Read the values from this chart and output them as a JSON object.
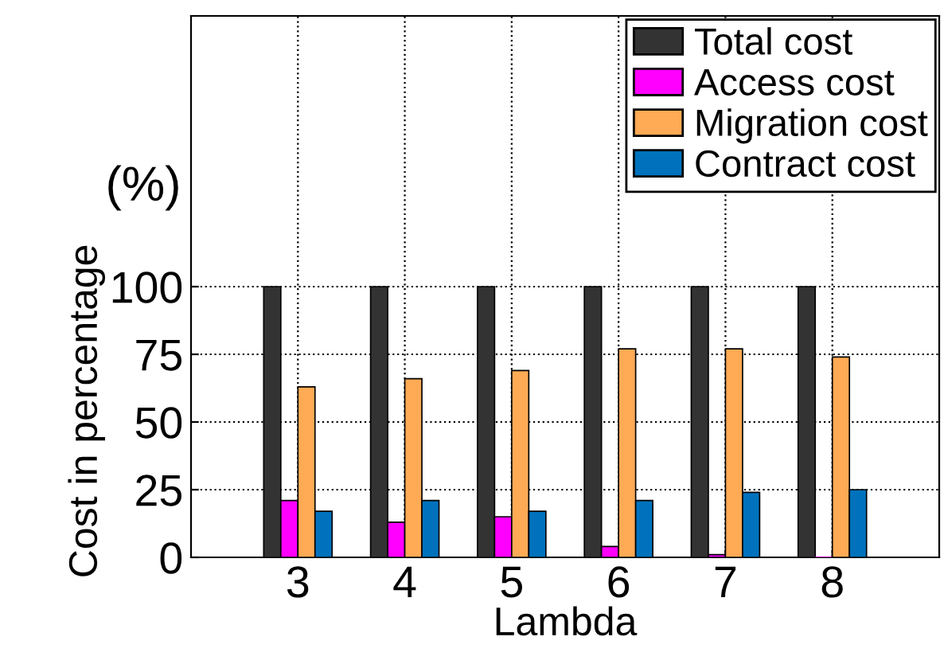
{
  "chart_data": {
    "type": "bar",
    "xlabel": "Lambda",
    "ylabel": "Cost in percentage",
    "annotations": [
      "(%)"
    ],
    "x": [
      3,
      4,
      5,
      6,
      7,
      8
    ],
    "xlim": [
      2,
      9
    ],
    "xticks": [
      3,
      4,
      5,
      6,
      7,
      8
    ],
    "ylim": [
      0,
      200
    ],
    "yticks": [
      0,
      25,
      50,
      75,
      100
    ],
    "grid": true,
    "legend": "top right",
    "series": [
      {
        "name": "Total cost",
        "color": "#333333",
        "values": [
          100,
          100,
          100,
          100,
          100,
          100
        ]
      },
      {
        "name": "Access cost",
        "color": "#ff00ff",
        "values": [
          21,
          13,
          15,
          4,
          1,
          0
        ]
      },
      {
        "name": "Migration cost",
        "color": "#ffaa55",
        "values": [
          63,
          66,
          69,
          77,
          77,
          74
        ]
      },
      {
        "name": "Contract cost",
        "color": "#0072bd",
        "values": [
          17,
          21,
          17,
          21,
          24,
          25
        ]
      }
    ]
  }
}
